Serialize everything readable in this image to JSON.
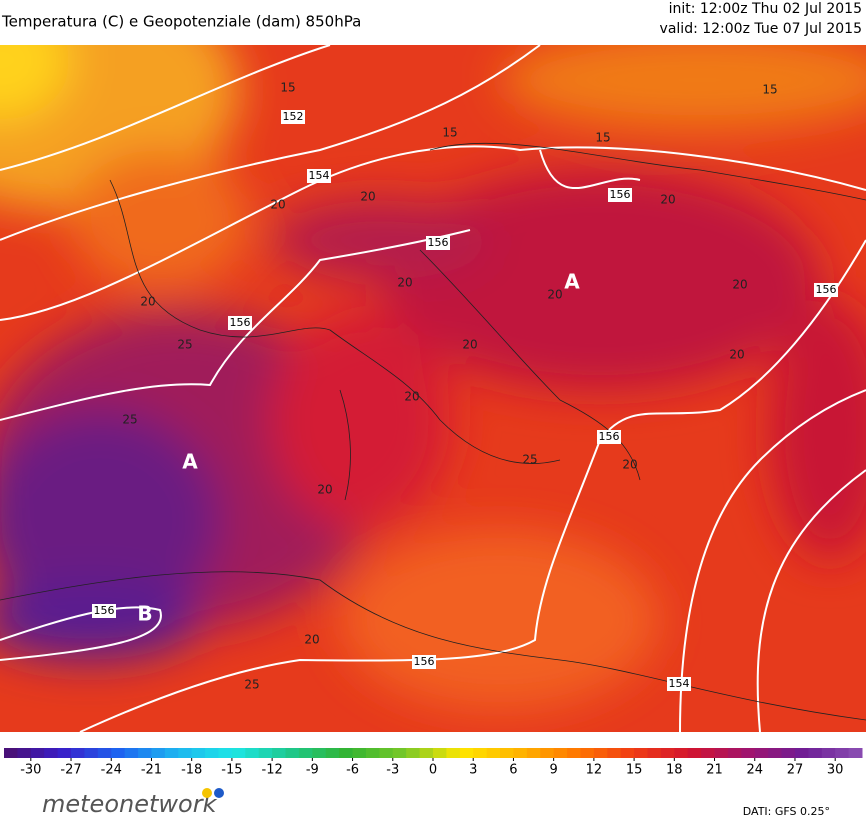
{
  "header": {
    "title": "Temperatura (C) e Geopotenziale (dam) 850hPa",
    "init": "init: 12:00z Thu 02 Jul 2015",
    "valid": "valid: 12:00z Tue 07 Jul 2015"
  },
  "map": {
    "labels": [
      "A",
      "A",
      "B",
      "156",
      "156",
      "156",
      "156",
      "156",
      "156",
      "156",
      "154",
      "154",
      "152",
      "15",
      "15",
      "15",
      "15",
      "20",
      "20",
      "20",
      "20",
      "20",
      "20",
      "20",
      "20",
      "20",
      "20",
      "20",
      "20",
      "20",
      "25",
      "25",
      "25",
      "25"
    ]
  },
  "colorbar": {
    "lim": [
      -32,
      32
    ],
    "ticks": [
      -30,
      -27,
      -24,
      -21,
      -18,
      -15,
      -12,
      -9,
      -6,
      -3,
      0,
      3,
      6,
      9,
      12,
      15,
      18,
      21,
      24,
      27,
      30
    ],
    "colors": [
      "#4b0f6e",
      "#3a1ec8",
      "#1e64f0",
      "#1eb4f0",
      "#1ee6e6",
      "#1ec88c",
      "#32b432",
      "#78c828",
      "#ffe600",
      "#ffb400",
      "#ff7800",
      "#f03c14",
      "#d21430",
      "#a0146e",
      "#6e1e96",
      "#8c50b4"
    ]
  },
  "footer": {
    "logo": "meteonetwork",
    "source": "DATI:  GFS  0.25°"
  }
}
